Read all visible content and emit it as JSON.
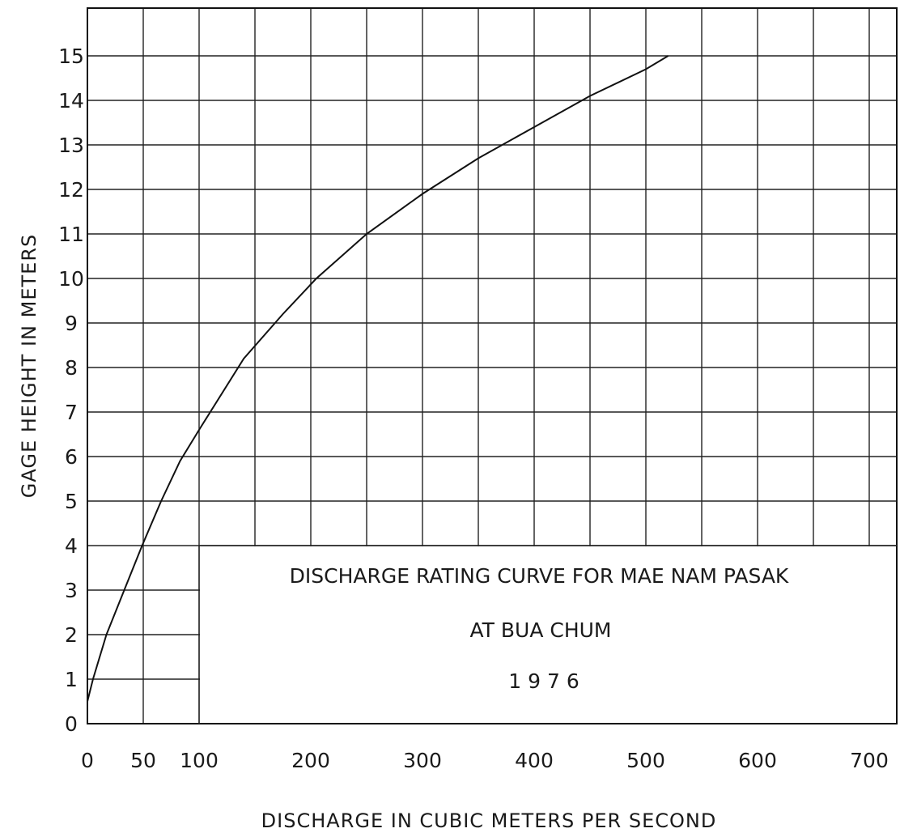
{
  "chart_data": {
    "type": "line",
    "title_lines": [
      "DISCHARGE RATING CURVE FOR MAE NAM PASAK",
      "AT BUA CHUM",
      "1 9 7 6"
    ],
    "xlabel": "DISCHARGE IN CUBIC METERS PER SECOND",
    "ylabel": "GAGE HEIGHT IN METERS",
    "xlim": [
      0,
      700
    ],
    "ylim": [
      0,
      15
    ],
    "x_ticks": [
      "0",
      "50",
      "100",
      "200",
      "300",
      "400",
      "500",
      "600",
      "700"
    ],
    "x_tick_values": [
      0,
      50,
      100,
      200,
      300,
      400,
      500,
      600,
      700
    ],
    "y_ticks": [
      "0",
      "1",
      "2",
      "3",
      "4",
      "5",
      "6",
      "7",
      "8",
      "9",
      "10",
      "11",
      "12",
      "13",
      "14",
      "15"
    ],
    "y_tick_values": [
      0,
      1,
      2,
      3,
      4,
      5,
      6,
      7,
      8,
      9,
      10,
      11,
      12,
      13,
      14,
      15
    ],
    "grid": true,
    "series": [
      {
        "x": [
          0,
          5,
          17,
          33,
          49,
          66,
          83,
          100,
          140,
          175,
          205,
          250,
          300,
          350,
          400,
          450,
          500,
          520
        ],
        "y": [
          0.5,
          1.0,
          2.0,
          3.0,
          4.0,
          5.0,
          5.9,
          6.6,
          8.2,
          9.2,
          10.0,
          11.0,
          11.9,
          12.7,
          13.4,
          14.1,
          14.7,
          15.0
        ]
      }
    ]
  }
}
